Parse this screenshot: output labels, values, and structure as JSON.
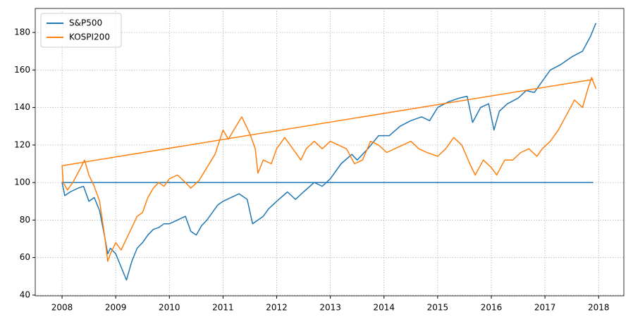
{
  "chart_data": {
    "type": "line",
    "xlim": [
      2007.5,
      2018.47
    ],
    "ylim": [
      39.6,
      192.8
    ],
    "xticks": [
      2008,
      2009,
      2010,
      2011,
      2012,
      2013,
      2014,
      2015,
      2016,
      2017,
      2018
    ],
    "yticks": [
      40,
      60,
      80,
      100,
      120,
      140,
      160,
      180
    ],
    "grid": true,
    "legend": "upper left",
    "series": [
      {
        "name": "S&P500",
        "color": "#1f77b4",
        "x": [
          2017.9,
          2008.0,
          2008.05,
          2008.15,
          2008.3,
          2008.4,
          2008.5,
          2008.6,
          2008.7,
          2008.8,
          2008.85,
          2008.9,
          2009.0,
          2009.1,
          2009.2,
          2009.3,
          2009.4,
          2009.5,
          2009.6,
          2009.7,
          2009.8,
          2009.9,
          2010.0,
          2010.15,
          2010.3,
          2010.4,
          2010.5,
          2010.6,
          2010.7,
          2010.8,
          2010.9,
          2011.0,
          2011.15,
          2011.3,
          2011.45,
          2011.55,
          2011.65,
          2011.75,
          2011.85,
          2012.0,
          2012.2,
          2012.35,
          2012.5,
          2012.7,
          2012.85,
          2013.0,
          2013.2,
          2013.4,
          2013.5,
          2013.7,
          2013.9,
          2014.1,
          2014.3,
          2014.5,
          2014.7,
          2014.85,
          2015.0,
          2015.2,
          2015.4,
          2015.55,
          2015.65,
          2015.8,
          2015.95,
          2016.05,
          2016.15,
          2016.3,
          2016.5,
          2016.65,
          2016.8,
          2016.95,
          2017.1,
          2017.3,
          2017.5,
          2017.7,
          2017.85,
          2017.95
        ],
        "values": [
          100,
          100,
          93,
          95,
          97,
          98,
          90,
          92,
          85,
          70,
          62,
          65,
          62,
          55,
          48,
          58,
          65,
          68,
          72,
          75,
          76,
          78,
          78,
          80,
          82,
          74,
          72,
          77,
          80,
          84,
          88,
          90,
          92,
          94,
          91,
          78,
          80,
          82,
          86,
          90,
          95,
          91,
          95,
          100,
          98,
          102,
          110,
          115,
          112,
          118,
          125,
          125,
          130,
          133,
          135,
          133,
          140,
          143,
          145,
          146,
          132,
          140,
          142,
          128,
          138,
          142,
          145,
          149,
          148,
          154,
          160,
          163,
          167,
          170,
          178,
          185
        ]
      },
      {
        "name": "KOSPI200",
        "color": "#ff7f0e",
        "x": [
          2017.9,
          2008.0,
          2008.02,
          2008.1,
          2008.2,
          2008.35,
          2008.42,
          2008.5,
          2008.6,
          2008.7,
          2008.8,
          2008.85,
          2008.9,
          2009.0,
          2009.1,
          2009.2,
          2009.3,
          2009.4,
          2009.5,
          2009.6,
          2009.7,
          2009.8,
          2009.9,
          2010.0,
          2010.15,
          2010.3,
          2010.4,
          2010.55,
          2010.7,
          2010.85,
          2011.0,
          2011.1,
          2011.2,
          2011.35,
          2011.5,
          2011.6,
          2011.65,
          2011.75,
          2011.9,
          2012.0,
          2012.15,
          2012.3,
          2012.45,
          2012.55,
          2012.7,
          2012.85,
          2013.0,
          2013.15,
          2013.3,
          2013.45,
          2013.6,
          2013.75,
          2013.9,
          2014.05,
          2014.2,
          2014.35,
          2014.5,
          2014.65,
          2014.8,
          2015.0,
          2015.15,
          2015.3,
          2015.45,
          2015.6,
          2015.7,
          2015.85,
          2016.0,
          2016.1,
          2016.25,
          2016.4,
          2016.55,
          2016.7,
          2016.85,
          2016.95,
          2017.1,
          2017.25,
          2017.4,
          2017.55,
          2017.7,
          2017.8,
          2017.87,
          2017.95
        ],
        "values": [
          155,
          109,
          100,
          96,
          100,
          108,
          112,
          104,
          98,
          90,
          70,
          58,
          62,
          68,
          64,
          70,
          76,
          82,
          84,
          92,
          97,
          100,
          98,
          102,
          104,
          100,
          97,
          101,
          108,
          115,
          128,
          123,
          128,
          135,
          126,
          118,
          105,
          112,
          110,
          118,
          124,
          118,
          112,
          118,
          122,
          118,
          122,
          120,
          118,
          110,
          112,
          122,
          120,
          116,
          118,
          120,
          122,
          118,
          116,
          114,
          118,
          124,
          120,
          110,
          104,
          112,
          108,
          104,
          112,
          112,
          116,
          118,
          114,
          118,
          122,
          128,
          136,
          144,
          140,
          150,
          156,
          150
        ]
      }
    ]
  }
}
